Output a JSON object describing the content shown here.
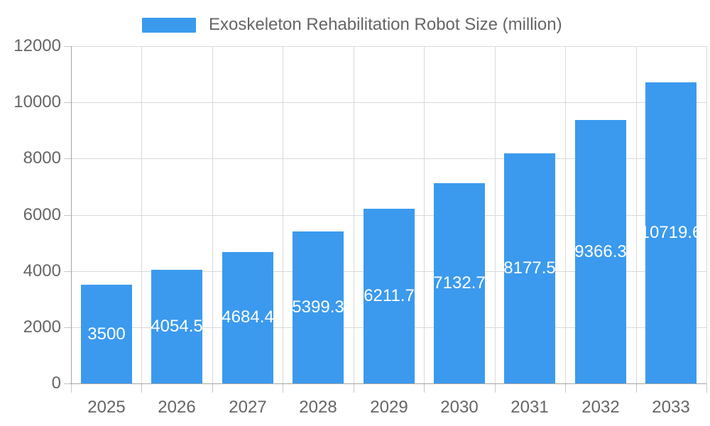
{
  "chart_data": {
    "type": "bar",
    "title": "",
    "legend": "Exoskeleton Rehabilitation Robot Size (million)",
    "legend_position": "top",
    "categories": [
      "2025",
      "2026",
      "2027",
      "2028",
      "2029",
      "2030",
      "2031",
      "2032",
      "2033"
    ],
    "series": [
      {
        "name": "Exoskeleton Rehabilitation Robot Size (million)",
        "values": [
          3500,
          4054.5,
          4684.4,
          5399.3,
          6211.7,
          7132.7,
          8177.5,
          9366.3,
          10719.6
        ]
      }
    ],
    "value_labels": [
      "3500",
      "4054.5",
      "4684.4",
      "5399.3",
      "6211.7",
      "7132.7",
      "8177.5",
      "9366.3",
      "10719.6"
    ],
    "value_label_position": "inside-center",
    "xlabel": "",
    "ylabel": "",
    "ylim": [
      0,
      12000
    ],
    "yticks": [
      0,
      2000,
      4000,
      6000,
      8000,
      10000,
      12000
    ],
    "grid": true,
    "colors": {
      "bar": "#3B9AEE",
      "grid_line": "#D9D9D9",
      "axis_line": "#A6A6A6",
      "tick_mark": "#C6C6C6",
      "tick_text": "#666666",
      "legend_text": "#666666",
      "value_label_text": "#FFFFFF",
      "background": "#FFFFFF"
    }
  }
}
